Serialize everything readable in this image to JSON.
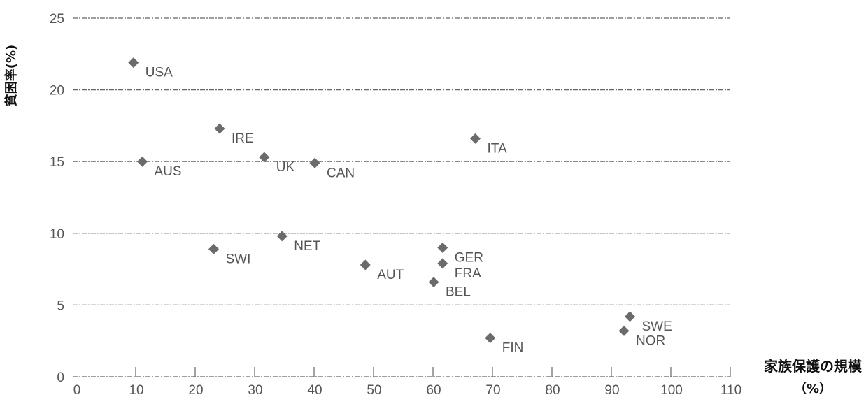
{
  "chart_data": {
    "type": "scatter",
    "xlabel": "家族保護の規模",
    "xlabel_unit": "（%）",
    "ylabel": "貧困率(%)",
    "xlim": [
      0,
      110
    ],
    "ylim": [
      0,
      25
    ],
    "x_ticks": [
      "0",
      "10",
      "20",
      "30",
      "40",
      "50",
      "60",
      "70",
      "80",
      "90",
      "100",
      "110"
    ],
    "y_ticks": [
      "0",
      "5",
      "10",
      "15",
      "20",
      "25"
    ],
    "grid": true,
    "marker": "diamond",
    "marker_color": "#6b6b6b",
    "points": [
      {
        "label": "USA",
        "x": 9.5,
        "y": 21.9
      },
      {
        "label": "AUS",
        "x": 11,
        "y": 15.0
      },
      {
        "label": "IRE",
        "x": 24,
        "y": 17.3
      },
      {
        "label": "UK",
        "x": 31.5,
        "y": 15.3
      },
      {
        "label": "CAN",
        "x": 40,
        "y": 14.9
      },
      {
        "label": "ITA",
        "x": 67,
        "y": 16.6
      },
      {
        "label": "SWI",
        "x": 23,
        "y": 8.9
      },
      {
        "label": "NET",
        "x": 34.5,
        "y": 9.8
      },
      {
        "label": "AUT",
        "x": 48.5,
        "y": 7.8
      },
      {
        "label": "GER",
        "x": 61.5,
        "y": 9.0
      },
      {
        "label": "FRA",
        "x": 61.5,
        "y": 7.9
      },
      {
        "label": "BEL",
        "x": 60,
        "y": 6.6
      },
      {
        "label": "FIN",
        "x": 69.5,
        "y": 2.7
      },
      {
        "label": "SWE",
        "x": 93,
        "y": 4.2
      },
      {
        "label": "NOR",
        "x": 92,
        "y": 3.2
      }
    ]
  }
}
